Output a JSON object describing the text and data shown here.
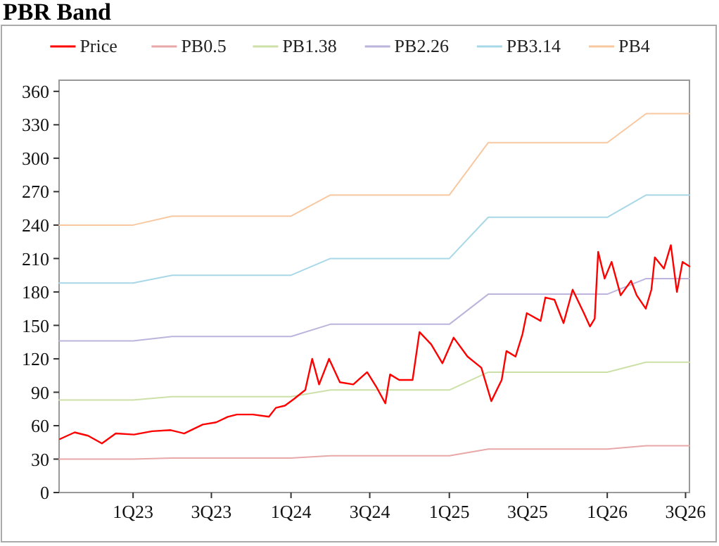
{
  "chart_data": {
    "type": "line",
    "title": "PBR Band",
    "legend": "top",
    "grid": false,
    "marker": "none",
    "line_style": "solid",
    "xlim": [
      "2022-07-14",
      "2026-07-10"
    ],
    "ylim": [
      0,
      370
    ],
    "yticks": [
      0,
      30,
      60,
      90,
      120,
      150,
      180,
      210,
      240,
      270,
      300,
      330,
      360
    ],
    "xticks": [
      {
        "value": "2023-01-01",
        "label": "1Q23"
      },
      {
        "value": "2023-07-01",
        "label": "3Q23"
      },
      {
        "value": "2024-01-01",
        "label": "1Q24"
      },
      {
        "value": "2024-07-01",
        "label": "3Q24"
      },
      {
        "value": "2025-01-01",
        "label": "1Q25"
      },
      {
        "value": "2025-07-01",
        "label": "3Q25"
      },
      {
        "value": "2026-01-01",
        "label": "1Q26"
      },
      {
        "value": "2026-07-01",
        "label": "3Q26"
      }
    ],
    "series": [
      {
        "name": "Price",
        "color": "#ff0000",
        "x": [
          "2022-07-16",
          "2022-08-19",
          "2022-09-19",
          "2022-10-21",
          "2022-11-22",
          "2023-01-03",
          "2023-02-14",
          "2023-03-29",
          "2023-04-29",
          "2023-06-11",
          "2023-07-12",
          "2023-08-08",
          "2023-08-29",
          "2023-10-05",
          "2023-11-11",
          "2023-11-27",
          "2023-12-18",
          "2024-01-08",
          "2024-02-03",
          "2024-02-19",
          "2024-03-06",
          "2024-03-29",
          "2024-04-23",
          "2024-05-24",
          "2024-06-25",
          "2024-07-16",
          "2024-08-06",
          "2024-08-17",
          "2024-09-07",
          "2024-10-08",
          "2024-10-24",
          "2024-11-20",
          "2024-12-16",
          "2025-01-11",
          "2025-02-12",
          "2025-03-16",
          "2025-04-08",
          "2025-05-02",
          "2025-05-13",
          "2025-06-03",
          "2025-06-19",
          "2025-06-29",
          "2025-07-31",
          "2025-08-11",
          "2025-09-01",
          "2025-09-22",
          "2025-10-13",
          "2025-11-08",
          "2025-11-22",
          "2025-12-03",
          "2025-12-11",
          "2025-12-26",
          "2026-01-11",
          "2026-02-01",
          "2026-02-25",
          "2026-03-10",
          "2026-03-31",
          "2026-04-13",
          "2026-04-21",
          "2026-05-12",
          "2026-05-28",
          "2026-06-11",
          "2026-06-24",
          "2026-07-10"
        ],
        "values": [
          48,
          54,
          51,
          44,
          53,
          52,
          55,
          56,
          53,
          61,
          63,
          68,
          70,
          70,
          68,
          76,
          78,
          84,
          92,
          120,
          97,
          120,
          99,
          97,
          108,
          95,
          80,
          106,
          101,
          101,
          144,
          133,
          116,
          139,
          122,
          112,
          82,
          101,
          127,
          122,
          142,
          161,
          154,
          175,
          173,
          152,
          182,
          161,
          149,
          156,
          216,
          192,
          207,
          177,
          190,
          177,
          165,
          182,
          211,
          201,
          222,
          180,
          207,
          203
        ]
      },
      {
        "name": "PB0.5",
        "color": "#e8a8a8",
        "x": [
          "2022-07-14",
          "2023-01-01",
          "2023-04-01",
          "2024-01-01",
          "2024-04-01",
          "2025-01-01",
          "2025-04-01",
          "2026-01-01",
          "2026-04-01",
          "2026-07-10"
        ],
        "values": [
          30,
          30,
          31,
          31,
          33,
          33,
          39,
          39,
          42,
          42
        ]
      },
      {
        "name": "PB1.38",
        "color": "#cde0a8",
        "x": [
          "2022-07-14",
          "2023-01-01",
          "2023-04-01",
          "2024-01-01",
          "2024-04-01",
          "2025-01-01",
          "2025-04-01",
          "2026-01-01",
          "2026-04-01",
          "2026-07-10"
        ],
        "values": [
          83,
          83,
          86,
          86,
          92,
          92,
          108,
          108,
          117,
          117
        ]
      },
      {
        "name": "PB2.26",
        "color": "#bcb4dc",
        "x": [
          "2022-07-14",
          "2023-01-01",
          "2023-04-01",
          "2024-01-01",
          "2024-04-01",
          "2025-01-01",
          "2025-04-01",
          "2026-01-01",
          "2026-04-01",
          "2026-07-10"
        ],
        "values": [
          136,
          136,
          140,
          140,
          151,
          151,
          178,
          178,
          192,
          192
        ]
      },
      {
        "name": "PB3.14",
        "color": "#a8d8e8",
        "x": [
          "2022-07-14",
          "2023-01-01",
          "2023-04-01",
          "2024-01-01",
          "2024-04-01",
          "2025-01-01",
          "2025-04-01",
          "2026-01-01",
          "2026-04-01",
          "2026-07-10"
        ],
        "values": [
          188,
          188,
          195,
          195,
          210,
          210,
          247,
          247,
          267,
          267
        ]
      },
      {
        "name": "PB4",
        "color": "#f8c8a0",
        "x": [
          "2022-07-14",
          "2023-01-01",
          "2023-04-01",
          "2024-01-01",
          "2024-04-01",
          "2025-01-01",
          "2025-04-01",
          "2026-01-01",
          "2026-04-01",
          "2026-07-10"
        ],
        "values": [
          240,
          240,
          248,
          248,
          267,
          267,
          314,
          314,
          340,
          340
        ]
      }
    ]
  }
}
